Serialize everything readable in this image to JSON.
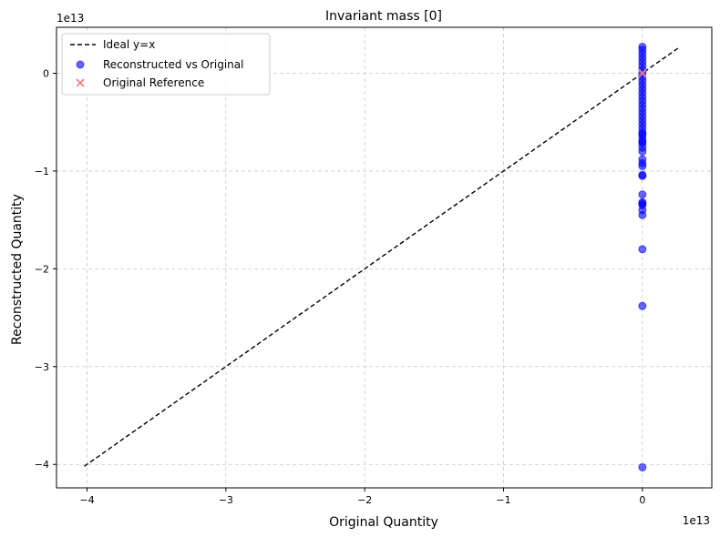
{
  "chart_data": {
    "type": "scatter",
    "title": "Invariant mass [0]",
    "xlabel": "Original Quantity",
    "ylabel": "Reconstructed Quantity",
    "x_offset_label": "1e13",
    "y_offset_label": "1e13",
    "xlim": [
      -4.22,
      0.5
    ],
    "ylim": [
      -4.24,
      0.47
    ],
    "xticks": [
      -4,
      -3,
      -2,
      -1,
      0
    ],
    "yticks": [
      -4,
      -3,
      -2,
      -1,
      0
    ],
    "grid": true,
    "legend_position": "top-left",
    "legend": [
      "Ideal y=x",
      "Reconstructed vs Original",
      "Original Reference"
    ],
    "series": [
      {
        "name": "Ideal y=x",
        "kind": "line",
        "color": "#000000",
        "dash": "dashed",
        "x": [
          -4.02,
          0.27
        ],
        "y": [
          -4.02,
          0.27
        ]
      },
      {
        "name": "Reconstructed vs Original",
        "kind": "scatter",
        "marker": "circle",
        "color": "#0000ff",
        "x": [
          0,
          0,
          0,
          0,
          0,
          0,
          0,
          0,
          0,
          0,
          0,
          0,
          0,
          0,
          0,
          0,
          0,
          0,
          0,
          0,
          0,
          0,
          0,
          0,
          0,
          0,
          0,
          0,
          0,
          0,
          0,
          0,
          0,
          0,
          0,
          0,
          0,
          0,
          0,
          0,
          0,
          0,
          0,
          0
        ],
        "y": [
          0.27,
          0.24,
          0.2,
          0.16,
          0.12,
          0.08,
          0.04,
          0.0,
          -0.04,
          -0.08,
          -0.12,
          -0.16,
          -0.2,
          -0.24,
          -0.28,
          -0.32,
          -0.36,
          -0.4,
          -0.44,
          -0.48,
          -0.52,
          -0.56,
          -0.6,
          -0.64,
          -0.68,
          -0.72,
          -0.76,
          -0.8,
          -0.88,
          -0.92,
          -0.95,
          -1.04,
          -1.05,
          -1.24,
          -1.32,
          -1.33,
          -1.35,
          -1.4,
          -1.45,
          -1.8,
          -2.38,
          -4.03,
          -0.62,
          -0.7
        ]
      },
      {
        "name": "Original Reference",
        "kind": "scatter",
        "marker": "x",
        "color": "#f08080",
        "x": [
          0
        ],
        "y": [
          0
        ]
      }
    ]
  }
}
